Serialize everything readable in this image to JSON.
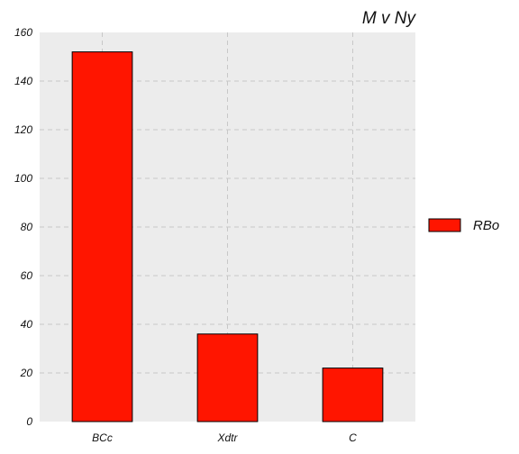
{
  "chart_data": {
    "type": "bar",
    "title": "M v Ny",
    "categories": [
      "BCc",
      "Xdtr",
      "C"
    ],
    "series": [
      {
        "name": "RBo",
        "values": [
          152,
          36,
          22
        ],
        "color": "#ff1500"
      }
    ],
    "xlabel": "",
    "ylabel": "",
    "ylim": [
      0,
      160
    ],
    "yticks": [
      0,
      20,
      40,
      60,
      80,
      100,
      120,
      140,
      160
    ],
    "grid": true,
    "legend_position": "right",
    "plot_background": "#ececec",
    "grid_color": "#c8c8c8"
  }
}
